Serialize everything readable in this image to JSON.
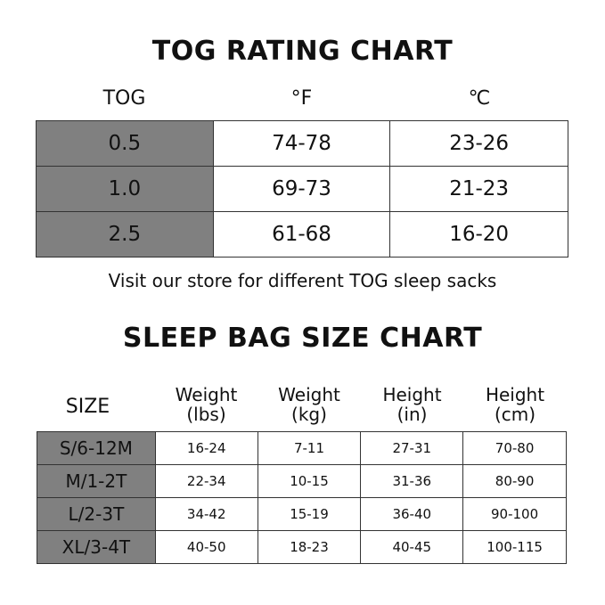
{
  "tog_chart": {
    "title": "TOG RATING CHART",
    "headers": [
      "TOG",
      "°F",
      "℃"
    ],
    "rows": [
      [
        "0.5",
        "74-78",
        "23-26"
      ],
      [
        "1.0",
        "69-73",
        "21-23"
      ],
      [
        "2.5",
        "61-68",
        "16-20"
      ]
    ],
    "caption": "Visit our store for different TOG sleep sacks"
  },
  "size_chart": {
    "title": "SLEEP BAG SIZE CHART",
    "headers": [
      [
        "SIZE",
        ""
      ],
      [
        "Weight",
        "(lbs)"
      ],
      [
        "Weight",
        "(kg)"
      ],
      [
        "Height",
        "(in)"
      ],
      [
        "Height",
        "(cm)"
      ]
    ],
    "rows": [
      [
        "S/6-12M",
        "16-24",
        "7-11",
        "27-31",
        "70-80"
      ],
      [
        "M/1-2T",
        "22-34",
        "10-15",
        "31-36",
        "80-90"
      ],
      [
        "L/2-3T",
        "34-42",
        "15-19",
        "36-40",
        "90-100"
      ],
      [
        "XL/3-4T",
        "40-50",
        "18-23",
        "40-45",
        "100-115"
      ]
    ]
  },
  "colors": {
    "label_cell": "#808080",
    "border": "#333333"
  }
}
